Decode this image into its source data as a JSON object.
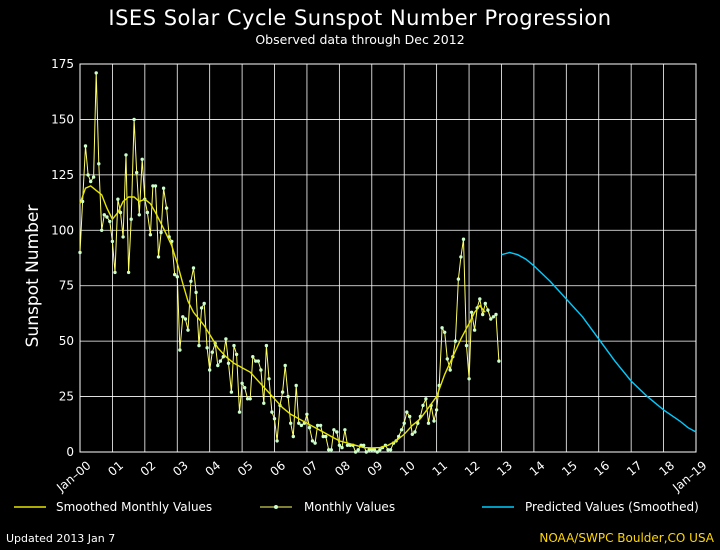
{
  "chart_data": {
    "type": "line",
    "title": "ISES Solar Cycle Sunspot Number Progression",
    "subtitle": "Observed data through Dec 2012",
    "ylabel": "Sunspot Number",
    "xlabel": "",
    "xlim": [
      2000.0,
      2019.0
    ],
    "ylim": [
      0,
      175
    ],
    "yticks": [
      0,
      25,
      50,
      75,
      100,
      125,
      150,
      175
    ],
    "xtick_labels": [
      "Jan–00",
      "01",
      "02",
      "03",
      "04",
      "05",
      "06",
      "07",
      "08",
      "09",
      "10",
      "11",
      "12",
      "13",
      "14",
      "15",
      "16",
      "17",
      "18",
      "Jan–19"
    ],
    "grid": true,
    "legend_placement": "bottom",
    "series": [
      {
        "name": "Smoothed Monthly Values",
        "color": "#e6e600",
        "style": "line",
        "x": [
          2000.0,
          2000.17,
          2000.33,
          2000.5,
          2000.67,
          2000.83,
          2001.0,
          2001.17,
          2001.33,
          2001.5,
          2001.67,
          2001.83,
          2002.0,
          2002.17,
          2002.33,
          2002.5,
          2002.67,
          2002.83,
          2003.0,
          2003.17,
          2003.33,
          2003.5,
          2003.67,
          2003.83,
          2004.0,
          2004.25,
          2004.5,
          2004.75,
          2005.0,
          2005.25,
          2005.5,
          2005.75,
          2006.0,
          2006.25,
          2006.5,
          2006.75,
          2007.0,
          2007.25,
          2007.5,
          2007.75,
          2008.0,
          2008.25,
          2008.5,
          2008.75,
          2009.0,
          2009.25,
          2009.5,
          2009.75,
          2010.0,
          2010.25,
          2010.5,
          2010.75,
          2011.0,
          2011.25,
          2011.5,
          2011.75,
          2012.0,
          2012.17,
          2012.33,
          2012.5
        ],
        "y": [
          112,
          119,
          120,
          118,
          116,
          110,
          105,
          108,
          113,
          115,
          115,
          113,
          114,
          112,
          108,
          103,
          98,
          93,
          85,
          76,
          68,
          63,
          60,
          57,
          53,
          47,
          43,
          40,
          38,
          36,
          32,
          28,
          24,
          20,
          17,
          15,
          13,
          11,
          9,
          7,
          5,
          4,
          3,
          2,
          1.8,
          2,
          3,
          5,
          8,
          12,
          15,
          20,
          25,
          35,
          43,
          51,
          58,
          63,
          66,
          63
        ]
      },
      {
        "name": "Monthly Values",
        "color": "#ccffcc",
        "style": "line+markers",
        "x": [
          2000.0,
          2000.08,
          2000.17,
          2000.25,
          2000.33,
          2000.42,
          2000.5,
          2000.58,
          2000.67,
          2000.75,
          2000.83,
          2000.92,
          2001.0,
          2001.08,
          2001.17,
          2001.25,
          2001.33,
          2001.42,
          2001.5,
          2001.58,
          2001.67,
          2001.75,
          2001.83,
          2001.92,
          2002.0,
          2002.08,
          2002.17,
          2002.25,
          2002.33,
          2002.42,
          2002.5,
          2002.58,
          2002.67,
          2002.75,
          2002.83,
          2002.92,
          2003.0,
          2003.08,
          2003.17,
          2003.25,
          2003.33,
          2003.42,
          2003.5,
          2003.58,
          2003.67,
          2003.75,
          2003.83,
          2003.92,
          2004.0,
          2004.08,
          2004.17,
          2004.25,
          2004.33,
          2004.42,
          2004.5,
          2004.58,
          2004.67,
          2004.75,
          2004.83,
          2004.92,
          2005.0,
          2005.08,
          2005.17,
          2005.25,
          2005.33,
          2005.42,
          2005.5,
          2005.58,
          2005.67,
          2005.75,
          2005.83,
          2005.92,
          2006.0,
          2006.08,
          2006.17,
          2006.25,
          2006.33,
          2006.42,
          2006.5,
          2006.58,
          2006.67,
          2006.75,
          2006.83,
          2006.92,
          2007.0,
          2007.08,
          2007.17,
          2007.25,
          2007.33,
          2007.42,
          2007.5,
          2007.58,
          2007.67,
          2007.75,
          2007.83,
          2007.92,
          2008.0,
          2008.08,
          2008.17,
          2008.25,
          2008.33,
          2008.42,
          2008.5,
          2008.58,
          2008.67,
          2008.75,
          2008.83,
          2008.92,
          2009.0,
          2009.08,
          2009.17,
          2009.25,
          2009.33,
          2009.42,
          2009.5,
          2009.58,
          2009.67,
          2009.75,
          2009.83,
          2009.92,
          2010.0,
          2010.08,
          2010.17,
          2010.25,
          2010.33,
          2010.42,
          2010.5,
          2010.58,
          2010.67,
          2010.75,
          2010.83,
          2010.92,
          2011.0,
          2011.08,
          2011.17,
          2011.25,
          2011.33,
          2011.42,
          2011.5,
          2011.58,
          2011.67,
          2011.75,
          2011.83,
          2011.92,
          2012.0,
          2012.08,
          2012.17,
          2012.25,
          2012.33,
          2012.42,
          2012.5,
          2012.58,
          2012.67,
          2012.75,
          2012.83,
          2012.92
        ],
        "y": [
          90,
          113,
          138,
          125,
          122,
          124,
          171,
          130,
          100,
          107,
          106,
          104,
          95,
          81,
          114,
          108,
          97,
          134,
          81,
          105,
          150,
          126,
          107,
          132,
          114,
          108,
          98,
          120,
          120,
          88,
          99,
          119,
          110,
          97,
          95,
          80,
          79,
          46,
          61,
          60,
          55,
          77,
          83,
          72,
          48,
          65,
          67,
          47,
          37,
          45,
          49,
          39,
          41,
          43,
          51,
          40,
          27,
          48,
          44,
          18,
          31,
          29,
          24,
          24,
          43,
          41,
          41,
          37,
          22,
          48,
          33,
          18,
          15,
          5,
          21,
          27,
          39,
          25,
          13,
          7,
          30,
          13,
          12,
          13,
          17,
          11,
          5,
          4,
          12,
          12,
          7,
          7,
          1,
          1,
          10,
          9,
          3,
          2,
          10,
          3,
          3,
          3,
          0,
          1,
          3,
          3,
          0,
          1,
          1,
          1,
          0,
          1,
          2,
          3,
          1,
          1,
          4,
          5,
          7,
          10,
          13,
          18,
          16,
          8,
          9,
          13,
          16,
          21,
          24,
          13,
          21,
          14,
          19,
          30,
          56,
          54,
          42,
          37,
          43,
          50,
          78,
          88,
          96,
          48,
          33,
          63,
          55,
          65,
          69,
          62,
          67,
          64,
          60,
          61,
          62,
          41
        ],
        "marker_color": "#ccffcc",
        "line_color": "#ffff66"
      },
      {
        "name": "Predicted Values (Smoothed)",
        "color": "#00ccff",
        "style": "line",
        "x": [
          2013.0,
          2013.25,
          2013.5,
          2013.75,
          2014.0,
          2014.5,
          2015.0,
          2015.5,
          2016.0,
          2016.5,
          2017.0,
          2017.5,
          2018.0,
          2018.5,
          2018.75,
          2019.0
        ],
        "y": [
          89,
          90,
          89,
          87,
          84,
          77,
          69,
          61,
          51,
          41,
          32,
          25,
          19,
          14,
          11,
          9
        ]
      }
    ]
  },
  "footer": {
    "updated": "Updated 2013 Jan  7",
    "credit": "NOAA/SWPC Boulder,CO USA"
  }
}
